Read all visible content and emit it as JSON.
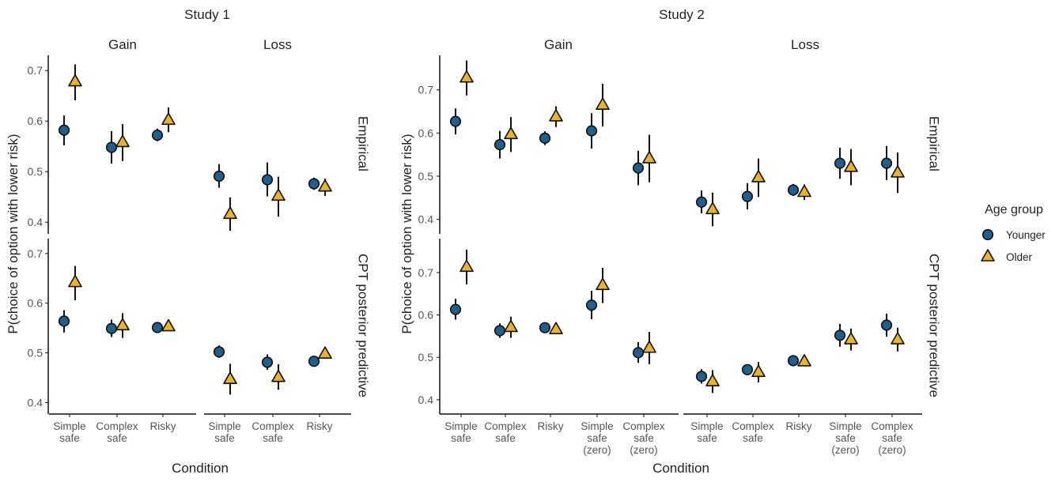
{
  "chart_data": {
    "type": "scatter",
    "ylabel": "P(choice of option with lower risk)",
    "xlabel": "Condition",
    "row_labels": [
      "Empirical",
      "CPT posterior predictive"
    ],
    "panel_labels": [
      "Gain",
      "Loss"
    ],
    "legend": {
      "title": "Age group",
      "placement": "right",
      "entries": [
        {
          "name": "Younger",
          "shape": "circle",
          "color": "#1f5f8b"
        },
        {
          "name": "Older",
          "shape": "triangle",
          "color": "#e8b42a"
        }
      ]
    },
    "studies": [
      {
        "title": "Study 1",
        "categories": [
          "Simple safe",
          "Complex safe",
          "Risky"
        ],
        "ylim": [
          0.38,
          0.73
        ],
        "yticks": [
          "0.4",
          "0.5",
          "0.6",
          "0.7"
        ],
        "panels": [
          {
            "row": "Empirical",
            "label": "Gain",
            "series": [
              {
                "name": "Younger",
                "values": [
                  0.582,
                  0.548,
                  0.572
                ],
                "lower": [
                  0.552,
                  0.516,
                  0.56
                ],
                "upper": [
                  0.611,
                  0.58,
                  0.585
                ]
              },
              {
                "name": "Older",
                "values": [
                  0.678,
                  0.558,
                  0.602
                ],
                "lower": [
                  0.641,
                  0.521,
                  0.578
                ],
                "upper": [
                  0.712,
                  0.594,
                  0.627
                ]
              }
            ]
          },
          {
            "row": "Empirical",
            "label": "Loss",
            "series": [
              {
                "name": "Younger",
                "values": [
                  0.491,
                  0.484,
                  0.476
                ],
                "lower": [
                  0.468,
                  0.451,
                  0.464
                ],
                "upper": [
                  0.515,
                  0.518,
                  0.488
                ]
              },
              {
                "name": "Older",
                "values": [
                  0.416,
                  0.452,
                  0.47
                ],
                "lower": [
                  0.383,
                  0.411,
                  0.452
                ],
                "upper": [
                  0.449,
                  0.49,
                  0.486
                ]
              }
            ]
          },
          {
            "row": "CPT posterior predictive",
            "label": "Gain",
            "series": [
              {
                "name": "Younger",
                "values": [
                  0.564,
                  0.549,
                  0.551
                ],
                "lower": [
                  0.541,
                  0.532,
                  0.544
                ],
                "upper": [
                  0.586,
                  0.567,
                  0.558
                ]
              },
              {
                "name": "Older",
                "values": [
                  0.642,
                  0.555,
                  0.553
                ],
                "lower": [
                  0.606,
                  0.53,
                  0.546
                ],
                "upper": [
                  0.675,
                  0.58,
                  0.561
                ]
              }
            ]
          },
          {
            "row": "CPT posterior predictive",
            "label": "Loss",
            "series": [
              {
                "name": "Younger",
                "values": [
                  0.502,
                  0.481,
                  0.483
                ],
                "lower": [
                  0.49,
                  0.466,
                  0.478
                ],
                "upper": [
                  0.515,
                  0.497,
                  0.488
                ]
              },
              {
                "name": "Older",
                "values": [
                  0.447,
                  0.451,
                  0.498
                ],
                "lower": [
                  0.416,
                  0.426,
                  0.49
                ],
                "upper": [
                  0.478,
                  0.477,
                  0.506
                ]
              }
            ]
          }
        ]
      },
      {
        "title": "Study 2",
        "categories": [
          "Simple safe",
          "Complex safe",
          "Risky",
          "Simple safe (zero)",
          "Complex safe (zero)"
        ],
        "ylim": [
          0.37,
          0.78
        ],
        "yticks": [
          "0.4",
          "0.5",
          "0.6",
          "0.7"
        ],
        "panels": [
          {
            "row": "Empirical",
            "label": "Gain",
            "series": [
              {
                "name": "Younger",
                "values": [
                  0.627,
                  0.573,
                  0.588,
                  0.605,
                  0.519
                ],
                "lower": [
                  0.597,
                  0.541,
                  0.572,
                  0.564,
                  0.479
                ],
                "upper": [
                  0.657,
                  0.605,
                  0.604,
                  0.646,
                  0.559
                ]
              },
              {
                "name": "Older",
                "values": [
                  0.728,
                  0.597,
                  0.638,
                  0.665,
                  0.541
                ],
                "lower": [
                  0.687,
                  0.556,
                  0.614,
                  0.615,
                  0.486
                ],
                "upper": [
                  0.768,
                  0.637,
                  0.662,
                  0.714,
                  0.596
                ]
              }
            ]
          },
          {
            "row": "Empirical",
            "label": "Loss",
            "series": [
              {
                "name": "Younger",
                "values": [
                  0.44,
                  0.453,
                  0.468,
                  0.53,
                  0.53
                ],
                "lower": [
                  0.414,
                  0.423,
                  0.454,
                  0.494,
                  0.491
                ],
                "upper": [
                  0.467,
                  0.484,
                  0.482,
                  0.566,
                  0.57
                ]
              },
              {
                "name": "Older",
                "values": [
                  0.423,
                  0.497,
                  0.463,
                  0.521,
                  0.508
                ],
                "lower": [
                  0.384,
                  0.452,
                  0.445,
                  0.479,
                  0.461
                ],
                "upper": [
                  0.462,
                  0.541,
                  0.481,
                  0.563,
                  0.555
                ]
              }
            ]
          },
          {
            "row": "CPT posterior predictive",
            "label": "Gain",
            "series": [
              {
                "name": "Younger",
                "values": [
                  0.613,
                  0.563,
                  0.57,
                  0.623,
                  0.511
                ],
                "lower": [
                  0.589,
                  0.546,
                  0.563,
                  0.59,
                  0.487
                ],
                "upper": [
                  0.638,
                  0.58,
                  0.577,
                  0.657,
                  0.536
                ]
              },
              {
                "name": "Older",
                "values": [
                  0.713,
                  0.571,
                  0.566,
                  0.67,
                  0.522
                ],
                "lower": [
                  0.672,
                  0.546,
                  0.56,
                  0.628,
                  0.484
                ],
                "upper": [
                  0.754,
                  0.596,
                  0.572,
                  0.711,
                  0.56
                ]
              }
            ]
          },
          {
            "row": "CPT posterior predictive",
            "label": "Loss",
            "series": [
              {
                "name": "Younger",
                "values": [
                  0.455,
                  0.471,
                  0.492,
                  0.552,
                  0.576
                ],
                "lower": [
                  0.438,
                  0.461,
                  0.486,
                  0.525,
                  0.549
                ],
                "upper": [
                  0.472,
                  0.481,
                  0.498,
                  0.579,
                  0.603
                ]
              },
              {
                "name": "Older",
                "values": [
                  0.443,
                  0.465,
                  0.49,
                  0.542,
                  0.542
                ],
                "lower": [
                  0.416,
                  0.441,
                  0.484,
                  0.516,
                  0.514
                ],
                "upper": [
                  0.47,
                  0.489,
                  0.496,
                  0.568,
                  0.57
                ]
              }
            ]
          }
        ]
      }
    ]
  }
}
